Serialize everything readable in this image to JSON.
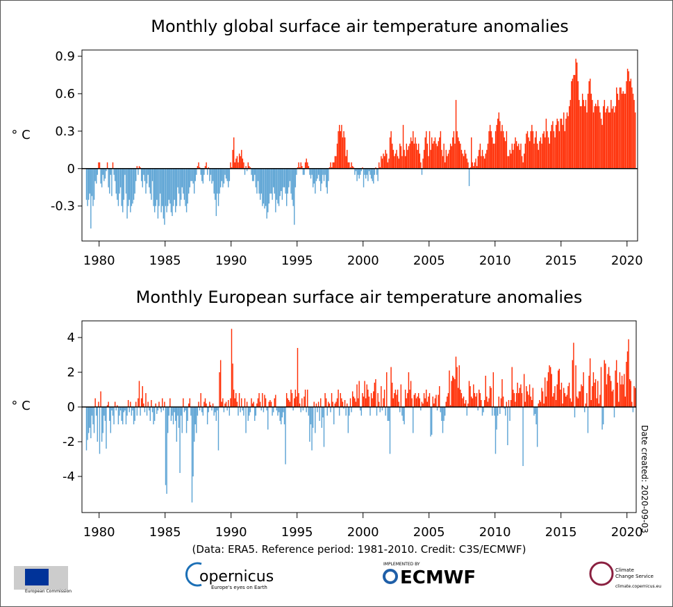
{
  "chart_data": [
    {
      "type": "bar",
      "title": "Monthly global surface air temperature anomalies",
      "ylabel": "° C",
      "x_start": 1979,
      "per_year": 12,
      "xlim": [
        1978.7,
        2020.8
      ],
      "xticks": [
        1980,
        1985,
        1990,
        1995,
        2000,
        2005,
        2010,
        2015,
        2020
      ],
      "ylim": [
        -0.58,
        0.95
      ],
      "yticks": [
        -0.3,
        0,
        0.3,
        0.6,
        0.9
      ],
      "positive_color": "#ff2a00",
      "negative_color": "#5ba3d4",
      "values": [
        -0.25,
        -0.3,
        -0.25,
        -0.2,
        -0.48,
        -0.22,
        -0.3,
        -0.25,
        -0.1,
        -0.12,
        -0.05,
        0.05,
        0.05,
        -0.12,
        -0.15,
        -0.05,
        -0.1,
        -0.08,
        -0.02,
        0.05,
        -0.15,
        -0.2,
        -0.05,
        -0.22,
        0.05,
        -0.05,
        -0.1,
        -0.2,
        -0.25,
        -0.3,
        -0.2,
        -0.15,
        -0.3,
        -0.35,
        -0.25,
        -0.05,
        -0.2,
        -0.4,
        -0.3,
        -0.25,
        -0.35,
        -0.3,
        -0.28,
        -0.25,
        -0.2,
        -0.1,
        0.02,
        -0.05,
        0.02,
        0.01,
        -0.1,
        -0.15,
        -0.05,
        -0.1,
        -0.2,
        -0.12,
        -0.05,
        -0.15,
        -0.2,
        -0.25,
        -0.1,
        -0.3,
        -0.35,
        -0.3,
        -0.25,
        -0.4,
        -0.3,
        -0.2,
        -0.35,
        -0.3,
        -0.4,
        -0.45,
        -0.3,
        -0.35,
        -0.3,
        -0.25,
        -0.28,
        -0.35,
        -0.38,
        -0.3,
        -0.25,
        -0.35,
        -0.3,
        -0.15,
        -0.2,
        -0.3,
        -0.25,
        -0.15,
        -0.2,
        -0.25,
        -0.3,
        -0.35,
        -0.28,
        -0.2,
        -0.15,
        -0.1,
        -0.1,
        -0.12,
        -0.2,
        -0.1,
        -0.05,
        0.02,
        0.05,
        0.01,
        -0.05,
        -0.1,
        -0.12,
        -0.05,
        0.02,
        0.05,
        -0.05,
        0.01,
        -0.1,
        -0.05,
        -0.12,
        -0.1,
        -0.2,
        -0.25,
        -0.38,
        -0.2,
        -0.3,
        -0.2,
        -0.15,
        -0.1,
        -0.15,
        -0.12,
        -0.05,
        -0.08,
        -0.1,
        -0.15,
        -0.1,
        0.05,
        0.01,
        0.15,
        0.25,
        0.05,
        0.08,
        0.1,
        0.05,
        0.12,
        0.1,
        0.15,
        0.08,
        0.05,
        -0.05,
        0.02,
        -0.02,
        0.05,
        0.02,
        0.01,
        -0.05,
        -0.1,
        -0.1,
        -0.05,
        -0.15,
        -0.2,
        -0.1,
        -0.2,
        -0.25,
        -0.2,
        -0.3,
        -0.28,
        -0.32,
        -0.3,
        -0.4,
        -0.35,
        -0.28,
        -0.2,
        -0.2,
        -0.25,
        -0.15,
        -0.2,
        -0.35,
        -0.25,
        -0.28,
        -0.3,
        -0.22,
        -0.18,
        -0.25,
        -0.15,
        -0.15,
        -0.2,
        -0.3,
        -0.2,
        -0.15,
        -0.1,
        -0.2,
        -0.25,
        -0.3,
        -0.45,
        -0.15,
        -0.05,
        0.01,
        0.05,
        0.01,
        0.05,
        0.02,
        -0.05,
        -0.05,
        0.05,
        0.08,
        0.05,
        0.02,
        -0.05,
        -0.08,
        -0.05,
        -0.15,
        -0.12,
        -0.2,
        -0.1,
        -0.08,
        -0.05,
        -0.1,
        -0.18,
        -0.12,
        -0.05,
        -0.1,
        -0.05,
        -0.15,
        -0.2,
        -0.1,
        0.01,
        0.05,
        0.01,
        0.05,
        0.05,
        0.1,
        0.1,
        0.2,
        0.3,
        0.35,
        0.3,
        0.35,
        0.25,
        0.3,
        0.25,
        0.1,
        0.15,
        0.05,
        0.05,
        0.01,
        0.05,
        0.02,
        0.01,
        -0.05,
        -0.02,
        -0.1,
        -0.05,
        -0.08,
        -0.05,
        -0.02,
        0.01,
        -0.15,
        -0.05,
        -0.08,
        -0.05,
        -0.1,
        -0.02,
        -0.05,
        -0.08,
        -0.1,
        -0.12,
        -0.05,
        0.01,
        -0.05,
        -0.1,
        0.05,
        0.01,
        0.1,
        0.08,
        0.12,
        0.1,
        0.15,
        0.12,
        0.05,
        0.08,
        0.25,
        0.3,
        0.2,
        0.15,
        0.1,
        0.12,
        0.15,
        0.1,
        0.08,
        0.2,
        0.18,
        0.1,
        0.35,
        0.15,
        0.1,
        0.2,
        0.15,
        0.18,
        0.2,
        0.25,
        0.22,
        0.3,
        0.2,
        0.25,
        0.2,
        0.15,
        0.2,
        0.12,
        0.05,
        -0.05,
        0.08,
        0.15,
        0.25,
        0.3,
        0.2,
        0.1,
        0.3,
        0.15,
        0.25,
        0.2,
        0.22,
        0.25,
        0.2,
        0.18,
        0.22,
        0.25,
        0.3,
        0.15,
        0.1,
        0.2,
        0.05,
        0.15,
        0.1,
        0.12,
        0.15,
        0.2,
        0.18,
        0.25,
        0.3,
        0.2,
        0.55,
        0.3,
        0.25,
        0.22,
        0.2,
        0.15,
        0.12,
        0.1,
        0.15,
        0.12,
        0.08,
        0.05,
        -0.14,
        0.01,
        0.25,
        0.05,
        0.02,
        0.05,
        0.08,
        0.02,
        0.1,
        0.15,
        0.2,
        0.1,
        0.15,
        0.1,
        0.08,
        0.12,
        0.15,
        0.2,
        0.3,
        0.35,
        0.3,
        0.25,
        0.2,
        0.2,
        0.3,
        0.35,
        0.4,
        0.45,
        0.38,
        0.3,
        0.35,
        0.3,
        0.25,
        0.22,
        0.3,
        0.1,
        0.1,
        0.15,
        0.12,
        0.2,
        0.15,
        0.2,
        0.25,
        0.22,
        0.18,
        0.2,
        0.15,
        0.2,
        0.1,
        0.05,
        0.12,
        0.2,
        0.28,
        0.3,
        0.25,
        0.22,
        0.3,
        0.35,
        0.3,
        0.2,
        0.25,
        0.3,
        0.2,
        0.15,
        0.22,
        0.25,
        0.2,
        0.28,
        0.3,
        0.25,
        0.4,
        0.3,
        0.25,
        0.2,
        0.3,
        0.35,
        0.38,
        0.3,
        0.25,
        0.35,
        0.4,
        0.38,
        0.3,
        0.4,
        0.4,
        0.35,
        0.45,
        0.3,
        0.4,
        0.45,
        0.42,
        0.5,
        0.55,
        0.7,
        0.72,
        0.75,
        0.75,
        0.88,
        0.85,
        0.7,
        0.55,
        0.5,
        0.5,
        0.6,
        0.55,
        0.5,
        0.55,
        0.45,
        0.6,
        0.7,
        0.72,
        0.6,
        0.55,
        0.45,
        0.5,
        0.52,
        0.5,
        0.55,
        0.5,
        0.45,
        0.4,
        0.35,
        0.5,
        0.55,
        0.45,
        0.48,
        0.5,
        0.45,
        0.45,
        0.55,
        0.48,
        0.5,
        0.45,
        0.5,
        0.65,
        0.6,
        0.55,
        0.65,
        0.65,
        0.6,
        0.62,
        0.6,
        0.6,
        0.7,
        0.8,
        0.78,
        0.7,
        0.72,
        0.65,
        0.6,
        0.55,
        0.45
      ]
    },
    {
      "type": "bar",
      "title": "Monthly European surface air temperature anomalies",
      "ylabel": "° C",
      "note": "Date created: 2020-09-03",
      "x_start": 1979,
      "per_year": 12,
      "xlim": [
        1978.7,
        2020.7
      ],
      "xticks": [
        1980,
        1985,
        1990,
        1995,
        2000,
        2005,
        2010,
        2015,
        2020
      ],
      "ylim": [
        -6.08,
        4.96
      ],
      "yticks": [
        -4,
        -2,
        0,
        2,
        4
      ],
      "positive_color": "#ff2a00",
      "negative_color": "#5ba3d4",
      "values": [
        -2.5,
        -1.9,
        -1.5,
        -1.2,
        -1.8,
        -0.5,
        -1.0,
        -1.5,
        0.5,
        -0.5,
        -2.0,
        0.3,
        -2.7,
        0.9,
        -2.0,
        -1.5,
        -0.5,
        -0.8,
        -2.4,
        0.1,
        0.3,
        -0.8,
        -1.5,
        -0.2,
        -0.5,
        -1.0,
        0.3,
        -0.2,
        0.1,
        -1.0,
        -0.5,
        -0.2,
        -0.8,
        -1.0,
        -0.3,
        -0.2,
        -1.0,
        -0.5,
        0.4,
        -0.3,
        0.3,
        -0.5,
        -0.2,
        -1.0,
        -0.8,
        0.3,
        -0.5,
        0.5,
        1.5,
        -0.5,
        0.5,
        1.2,
        0.2,
        -0.3,
        0.8,
        -0.5,
        0.3,
        -0.2,
        -0.8,
        0.4,
        -0.3,
        -1.0,
        -0.8,
        0.2,
        -0.4,
        -0.2,
        0.3,
        -0.1,
        -0.3,
        0.5,
        -0.2,
        0.3,
        -4.5,
        -5.0,
        -1.5,
        -0.5,
        0.5,
        -0.8,
        -0.5,
        -1.0,
        -0.3,
        -0.8,
        -2.0,
        -0.5,
        -1.2,
        -3.8,
        -0.5,
        -1.5,
        0.5,
        -0.3,
        -0.2,
        -1.5,
        -0.8,
        0.2,
        0.5,
        -0.5,
        -5.5,
        -4.0,
        -2.0,
        -1.0,
        -1.5,
        -0.5,
        0.3,
        -0.2,
        0.8,
        -0.3,
        -0.5,
        0.3,
        0.5,
        0.2,
        -1.0,
        -0.3,
        0.3,
        0.1,
        -0.2,
        0.2,
        -0.5,
        -0.3,
        -0.8,
        -0.2,
        -2.5,
        2.0,
        2.7,
        0.3,
        0.5,
        -0.3,
        0.2,
        0.3,
        -0.2,
        0.4,
        -0.5,
        0.5,
        4.5,
        2.5,
        1.0,
        0.5,
        0.8,
        0.3,
        -0.5,
        0.8,
        -0.3,
        0.5,
        -0.2,
        -0.5,
        0.5,
        -1.5,
        0.3,
        -0.8,
        -0.5,
        -0.3,
        0.5,
        0.2,
        0.3,
        -0.8,
        -0.5,
        0.2,
        0.5,
        0.8,
        0.3,
        -0.2,
        0.8,
        -0.3,
        0.7,
        0.5,
        -0.2,
        -1.3,
        0.3,
        0.4,
        0.3,
        -0.5,
        -0.3,
        0.5,
        0.7,
        -0.2,
        -0.5,
        -0.3,
        -0.8,
        -1.0,
        -0.6,
        -0.3,
        -1.0,
        -3.3,
        0.8,
        0.5,
        0.4,
        0.3,
        1.0,
        0.8,
        -0.2,
        0.5,
        1.0,
        0.6,
        3.4,
        0.8,
        0.2,
        -0.3,
        0.5,
        -0.2,
        0.6,
        1.0,
        -0.3,
        1.0,
        -0.5,
        -2.0,
        -1.0,
        -2.5,
        -1.2,
        0.3,
        -1.5,
        0.2,
        -0.3,
        0.3,
        -0.8,
        0.5,
        -1.2,
        -0.6,
        -2.3,
        0.8,
        0.5,
        -0.5,
        0.3,
        0.2,
        -0.3,
        0.8,
        0.3,
        -1.0,
        0.2,
        0.3,
        0.5,
        1.0,
        -0.5,
        0.8,
        0.5,
        0.3,
        -0.1,
        0.4,
        -0.5,
        0.2,
        -1.5,
        -0.5,
        0.5,
        -0.3,
        0.9,
        0.6,
        0.5,
        0.3,
        1.3,
        0.5,
        1.5,
        -0.2,
        -0.5,
        0.8,
        0.6,
        1.5,
        0.5,
        1.3,
        1.0,
        0.6,
        -0.5,
        0.8,
        0.5,
        0.9,
        1.4,
        1.6,
        -0.5,
        0.8,
        0.3,
        -0.3,
        1.2,
        -0.2,
        0.5,
        1.0,
        -0.5,
        2.0,
        -0.8,
        -0.8,
        -2.7,
        2.3,
        1.4,
        0.5,
        0.8,
        1.0,
        0.7,
        1.0,
        0.3,
        -0.3,
        1.3,
        -0.5,
        -0.8,
        -1.0,
        1.0,
        0.5,
        0.8,
        2.0,
        1.0,
        1.5,
        0.5,
        -1.5,
        0.7,
        0.8,
        0.5,
        0.6,
        0.8,
        0.5,
        -0.2,
        0.3,
        0.2,
        0.8,
        0.5,
        1.0,
        0.3,
        0.6,
        0.8,
        -1.7,
        -1.6,
        0.6,
        0.2,
        0.5,
        0.7,
        -0.2,
        0.7,
        1.2,
        -0.3,
        -0.8,
        -1.5,
        -0.8,
        -0.5,
        0.3,
        0.6,
        0.8,
        2.1,
        0.1,
        1.5,
        1.8,
        1.7,
        1.6,
        2.9,
        2.3,
        1.1,
        2.4,
        1.0,
        0.8,
        0.5,
        0.6,
        0.2,
        0.4,
        -0.5,
        0.2,
        1.5,
        1.2,
        0.6,
        0.5,
        1.3,
        0.8,
        0.6,
        0.8,
        -0.2,
        1.0,
        0.8,
        0.4,
        -0.5,
        -0.3,
        0.4,
        1.8,
        0.6,
        0.3,
        0.5,
        1.2,
        1.1,
        -0.5,
        2.0,
        -0.5,
        -2.7,
        -1.3,
        -0.5,
        0.6,
        -0.4,
        0.5,
        1.6,
        0.6,
        -0.1,
        -0.5,
        0.3,
        -2.2,
        0.4,
        -0.8,
        0.4,
        2.3,
        1.0,
        0.8,
        0.3,
        0.8,
        1.4,
        0.8,
        1.1,
        1.3,
        0.8,
        -3.4,
        1.9,
        0.3,
        1.2,
        0.9,
        0.7,
        1.3,
        0.6,
        0.4,
        1.1,
        -0.5,
        -0.4,
        -1.0,
        -2.3,
        0.2,
        0.4,
        0.3,
        1.1,
        0.9,
        0.2,
        1.7,
        0.6,
        1.5,
        2.0,
        2.4,
        2.3,
        1.9,
        0.6,
        0.8,
        1.2,
        0.4,
        1.3,
        2.1,
        2.2,
        1.0,
        1.4,
        0.2,
        1.1,
        0.8,
        0.6,
        0.7,
        1.2,
        1.4,
        0.5,
        0.3,
        2.7,
        3.7,
        -0.6,
        2.4,
        0.6,
        0.5,
        0.9,
        0.9,
        1.3,
        1.2,
        2.0,
        -0.3,
        0.2,
        0.8,
        -1.5,
        1.8,
        2.8,
        0.4,
        1.2,
        2.0,
        1.4,
        1.6,
        0.5,
        1.5,
        0.2,
        0.7,
        2.3,
        -1.3,
        -1.0,
        2.7,
        2.5,
        1.3,
        1.9,
        2.3,
        1.8,
        1.5,
        0.9,
        1.0,
        -0.6,
        2.1,
        2.7,
        1.4,
        0.3,
        2.0,
        1.3,
        1.8,
        1.3,
        1.9,
        0.6,
        2.6,
        3.2,
        3.9,
        1.6,
        1.5,
        0.3,
        -0.3,
        1.2,
        1.1
      ]
    }
  ],
  "footer": {
    "source": "(Data: ERA5.  Reference period: 1981-2010.  Credit: C3S/ECMWF)",
    "eu_name": "European Commission",
    "copernicus": "opernicus",
    "copernicus_tag": "Europe's eyes on Earth",
    "implemented_by": "IMPLEMENTED BY",
    "ecmwf": "ECMWF",
    "c3s_line1": "Climate",
    "c3s_line2": "Change Service",
    "c3s_url": "climate.copernicus.eu"
  }
}
